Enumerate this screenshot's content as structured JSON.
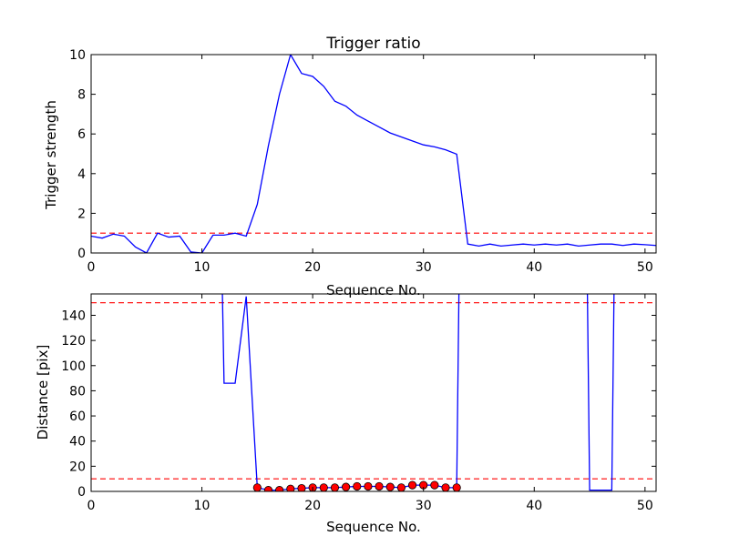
{
  "chart_data": [
    {
      "type": "line",
      "title": "Trigger ratio",
      "xlabel": "Sequence No.",
      "ylabel": "Trigger strength",
      "xlim": [
        0,
        51
      ],
      "ylim": [
        0,
        10
      ],
      "xticks": [
        0,
        10,
        20,
        30,
        40,
        50
      ],
      "yticks": [
        0,
        2,
        4,
        6,
        8,
        10
      ],
      "grid": false,
      "series": [
        {
          "color": "#0000ff",
          "x": [
            0,
            1,
            2,
            3,
            4,
            5,
            6,
            7,
            8,
            9,
            10,
            11,
            12,
            13,
            14,
            15,
            16,
            17,
            18,
            19,
            20,
            21,
            22,
            23,
            24,
            25,
            26,
            27,
            28,
            29,
            30,
            31,
            32,
            33,
            34,
            35,
            36,
            37,
            38,
            39,
            40,
            41,
            42,
            43,
            44,
            45,
            46,
            47,
            48,
            49,
            50,
            51
          ],
          "y": [
            0.85,
            0.75,
            0.95,
            0.85,
            0.3,
            0.0,
            1.0,
            0.8,
            0.85,
            0.05,
            0.0,
            0.9,
            0.9,
            1.0,
            0.85,
            2.45,
            5.4,
            8.0,
            10.0,
            9.05,
            8.9,
            8.4,
            7.65,
            7.4,
            6.95,
            6.65,
            6.35,
            6.05,
            5.85,
            5.65,
            5.45,
            5.35,
            5.2,
            4.98,
            0.45,
            0.35,
            0.45,
            0.35,
            0.4,
            0.45,
            0.4,
            0.45,
            0.4,
            0.45,
            0.35,
            0.4,
            0.45,
            0.45,
            0.38,
            0.45,
            0.42,
            0.38
          ]
        }
      ],
      "hlines": [
        {
          "y": 1,
          "color": "#ff0000",
          "style": "dashed"
        }
      ]
    },
    {
      "type": "line",
      "title": "",
      "xlabel": "Sequence No.",
      "ylabel": "Distance [pix]",
      "xlim": [
        0,
        51
      ],
      "ylim": [
        0,
        157
      ],
      "xticks": [
        0,
        10,
        20,
        30,
        40,
        50
      ],
      "yticks": [
        0,
        20,
        40,
        60,
        80,
        100,
        120,
        140
      ],
      "grid": false,
      "series": [
        {
          "color": "#0000ff",
          "x": [
            11.85,
            12,
            13,
            14,
            15,
            16,
            17,
            18,
            19,
            20,
            21,
            22,
            23,
            24,
            25,
            26,
            27,
            28,
            29,
            30,
            31,
            32,
            33,
            33.2
          ],
          "y": [
            157,
            86,
            86,
            155,
            3,
            1,
            1,
            2,
            2.5,
            3,
            3,
            3,
            3.5,
            4,
            4,
            4,
            3.5,
            3,
            5,
            5,
            5,
            3,
            3,
            157
          ]
        },
        {
          "color": "#0000ff",
          "x": [
            44.8,
            45,
            47,
            47.2
          ],
          "y": [
            157,
            1,
            1,
            157
          ]
        }
      ],
      "markers": {
        "color": "#ff0000",
        "shape": "circle",
        "x": [
          15,
          16,
          17,
          18,
          19,
          20,
          21,
          22,
          23,
          24,
          25,
          26,
          27,
          28,
          29,
          30,
          31,
          32,
          33
        ],
        "y": [
          3,
          1,
          1,
          2,
          2.5,
          3,
          3,
          3,
          3.5,
          4,
          4,
          4,
          3.5,
          3,
          5,
          5,
          5,
          3,
          3
        ]
      },
      "hlines": [
        {
          "y": 150,
          "color": "#ff0000",
          "style": "dashed"
        },
        {
          "y": 10,
          "color": "#ff0000",
          "style": "dashed"
        }
      ]
    }
  ]
}
